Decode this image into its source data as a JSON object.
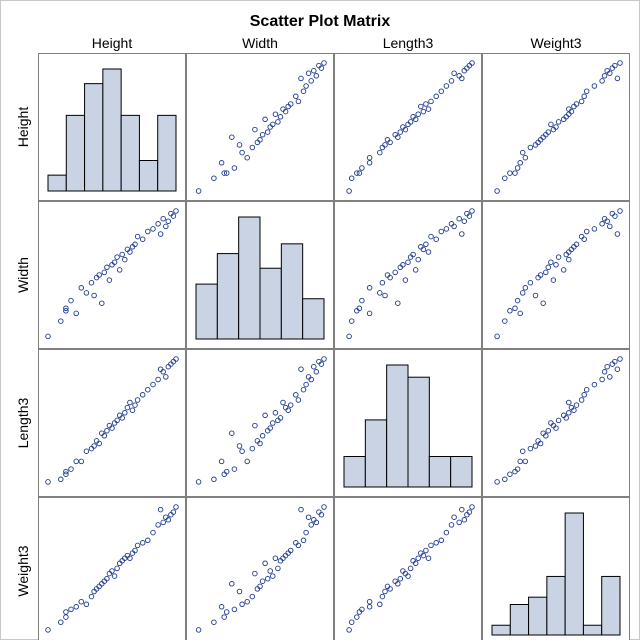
{
  "chart_data": {
    "type": "scatter-matrix",
    "title": "Scatter Plot Matrix",
    "variables": [
      "Height",
      "Width",
      "Length3",
      "Weight3"
    ],
    "colors": {
      "marker_stroke": "#1f3a8f",
      "hist_fill": "#c9d3e4",
      "hist_stroke": "#000000",
      "panel_border": "#808080",
      "border_outer": "#c8c8c8"
    },
    "histograms": [
      {
        "variable": "Height",
        "bin_heights": [
          0.13,
          0.62,
          0.88,
          1.0,
          0.62,
          0.25,
          0.62
        ]
      },
      {
        "variable": "Width",
        "bin_heights": [
          0.45,
          0.7,
          1.0,
          0.58,
          0.78,
          0.33
        ]
      },
      {
        "variable": "Length3",
        "bin_heights": [
          0.25,
          0.55,
          1.0,
          0.9,
          0.25,
          0.25
        ]
      },
      {
        "variable": "Weight3",
        "bin_heights": [
          0.08,
          0.25,
          0.31,
          0.48,
          1.0,
          0.08,
          0.48
        ]
      }
    ],
    "observations": [
      [
        0.0,
        0.02,
        0.04,
        0.04
      ],
      [
        0.1,
        0.14,
        0.06,
        0.1
      ],
      [
        0.14,
        0.22,
        0.1,
        0.14
      ],
      [
        0.14,
        0.24,
        0.12,
        0.18
      ],
      [
        0.18,
        0.3,
        0.14,
        0.2
      ],
      [
        0.22,
        0.2,
        0.2,
        0.22
      ],
      [
        0.26,
        0.4,
        0.2,
        0.26
      ],
      [
        0.3,
        0.36,
        0.28,
        0.24
      ],
      [
        0.34,
        0.44,
        0.3,
        0.3
      ],
      [
        0.36,
        0.34,
        0.32,
        0.34
      ],
      [
        0.38,
        0.48,
        0.36,
        0.36
      ],
      [
        0.4,
        0.5,
        0.34,
        0.38
      ],
      [
        0.42,
        0.28,
        0.42,
        0.4
      ],
      [
        0.44,
        0.52,
        0.4,
        0.42
      ],
      [
        0.46,
        0.56,
        0.44,
        0.44
      ],
      [
        0.48,
        0.46,
        0.48,
        0.48
      ],
      [
        0.5,
        0.58,
        0.46,
        0.5
      ],
      [
        0.52,
        0.6,
        0.5,
        0.46
      ],
      [
        0.54,
        0.64,
        0.52,
        0.52
      ],
      [
        0.56,
        0.54,
        0.56,
        0.56
      ],
      [
        0.58,
        0.66,
        0.54,
        0.58
      ],
      [
        0.6,
        0.62,
        0.58,
        0.6
      ],
      [
        0.62,
        0.7,
        0.62,
        0.62
      ],
      [
        0.64,
        0.68,
        0.66,
        0.6
      ],
      [
        0.66,
        0.72,
        0.6,
        0.64
      ],
      [
        0.68,
        0.74,
        0.64,
        0.66
      ],
      [
        0.7,
        0.8,
        0.68,
        0.7
      ],
      [
        0.74,
        0.78,
        0.72,
        0.72
      ],
      [
        0.78,
        0.84,
        0.76,
        0.74
      ],
      [
        0.82,
        0.86,
        0.8,
        0.8
      ],
      [
        0.86,
        0.9,
        0.84,
        0.86
      ],
      [
        0.9,
        0.94,
        0.9,
        0.88
      ],
      [
        0.94,
        0.92,
        0.94,
        0.9
      ],
      [
        0.96,
        0.98,
        0.96,
        0.94
      ],
      [
        0.98,
        0.96,
        0.98,
        0.96
      ],
      [
        1.0,
        1.0,
        1.0,
        1.0
      ],
      [
        0.88,
        0.82,
        0.92,
        0.98
      ],
      [
        0.92,
        0.88,
        0.86,
        0.92
      ]
    ]
  }
}
